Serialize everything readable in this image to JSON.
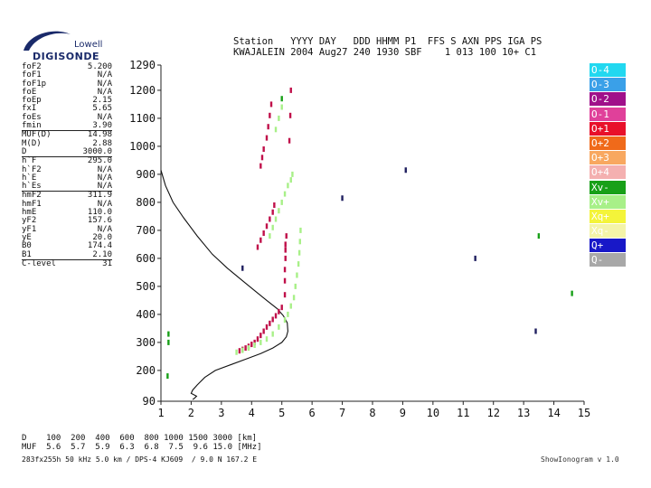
{
  "logo": {
    "line1": "Lowell",
    "line2": "DIGISONDE"
  },
  "header": {
    "line1": "Station   YYYY DAY   DDD HHMM P1  FFS S AXN PPS IGA PS",
    "line2": "KWAJALEIN 2004 Aug27 240 1930 SBF    1 013 100 10+ C1"
  },
  "params": [
    {
      "label": "foF2",
      "value": "5.200"
    },
    {
      "label": "foF1",
      "value": "N/A"
    },
    {
      "label": "foF1p",
      "value": "N/A"
    },
    {
      "label": "foE",
      "value": "N/A"
    },
    {
      "label": "foEp",
      "value": "2.15"
    },
    {
      "label": "fxI",
      "value": "5.65"
    },
    {
      "label": "foEs",
      "value": "N/A"
    },
    {
      "label": "fmin",
      "value": "3.90"
    },
    {
      "label": "MUF(D)",
      "value": "14.98",
      "sep": true
    },
    {
      "label": "M(D)",
      "value": "2.88"
    },
    {
      "label": "D",
      "value": "3000.0"
    },
    {
      "label": "h`F",
      "value": "295.0",
      "sep": true
    },
    {
      "label": "h`F2",
      "value": "N/A"
    },
    {
      "label": "h`E",
      "value": "N/A"
    },
    {
      "label": "h`Es",
      "value": "N/A"
    },
    {
      "label": "hmF2",
      "value": "311.9",
      "sep": true
    },
    {
      "label": "hmF1",
      "value": "N/A"
    },
    {
      "label": "hmE",
      "value": "110.0"
    },
    {
      "label": "yF2",
      "value": "157.6"
    },
    {
      "label": "yF1",
      "value": "N/A"
    },
    {
      "label": "yE",
      "value": "20.0"
    },
    {
      "label": "B0",
      "value": "174.4"
    },
    {
      "label": "B1",
      "value": "2.10"
    },
    {
      "label": "C-level",
      "value": "31",
      "sep": true
    }
  ],
  "legend": [
    {
      "label": "O-4",
      "color": "#22d8f0",
      "text": "#ffffff"
    },
    {
      "label": "O-3",
      "color": "#3aa0e8",
      "text": "#ffffff"
    },
    {
      "label": "O-2",
      "color": "#a0108a",
      "text": "#ffffff"
    },
    {
      "label": "O-1",
      "color": "#e0409a",
      "text": "#ffffff"
    },
    {
      "label": "O+1",
      "color": "#e8102a",
      "text": "#ffffff"
    },
    {
      "label": "O+2",
      "color": "#f06a1a",
      "text": "#ffffff"
    },
    {
      "label": "O+3",
      "color": "#f8a860",
      "text": "#ffffff"
    },
    {
      "label": "O+4",
      "color": "#f4b0b0",
      "text": "#ffffff"
    },
    {
      "label": "Xv-",
      "color": "#18a018",
      "text": "#ffffff"
    },
    {
      "label": "Xv+",
      "color": "#a8f088",
      "text": "#ffffff"
    },
    {
      "label": "Xq+",
      "color": "#f4f43a",
      "text": "#ffffff"
    },
    {
      "label": "Xq-",
      "color": "#f4f4a8",
      "text": "#ffffff"
    },
    {
      "label": "Q+",
      "color": "#1818c8",
      "text": "#ffffff"
    },
    {
      "label": "Q-",
      "color": "#a8a8a8",
      "text": "#ffffff"
    }
  ],
  "chart_data": {
    "type": "scatter",
    "xlim": [
      1,
      15
    ],
    "ylim": [
      90,
      1290
    ],
    "xticks": [
      "1",
      "2",
      "3",
      "4",
      "5",
      "6",
      "7",
      "8",
      "9",
      "10",
      "11",
      "12",
      "13",
      "14",
      "15"
    ],
    "yticks": [
      "90",
      "200",
      "300",
      "400",
      "500",
      "600",
      "700",
      "800",
      "900",
      "1000",
      "1100",
      "1200",
      "1290"
    ],
    "ytick_values": [
      90,
      200,
      300,
      400,
      500,
      600,
      700,
      800,
      900,
      1000,
      1100,
      1200,
      1290
    ],
    "profile": [
      [
        1.0,
        915
      ],
      [
        1.15,
        860
      ],
      [
        1.4,
        800
      ],
      [
        1.75,
        745
      ],
      [
        2.2,
        680
      ],
      [
        2.7,
        615
      ],
      [
        3.2,
        565
      ],
      [
        3.7,
        520
      ],
      [
        4.1,
        485
      ],
      [
        4.5,
        450
      ],
      [
        4.85,
        420
      ],
      [
        5.05,
        395
      ],
      [
        5.18,
        370
      ],
      [
        5.2,
        340
      ],
      [
        5.15,
        320
      ],
      [
        5.0,
        300
      ],
      [
        4.7,
        280
      ],
      [
        4.3,
        260
      ],
      [
        3.8,
        240
      ],
      [
        3.3,
        220
      ],
      [
        2.8,
        200
      ],
      [
        2.45,
        175
      ],
      [
        2.2,
        148
      ],
      [
        2.05,
        130
      ],
      [
        2.0,
        118
      ],
      [
        2.18,
        108
      ],
      [
        2.1,
        100
      ],
      [
        2.05,
        96
      ]
    ],
    "series": [
      {
        "color": "#c0104a",
        "points": [
          [
            3.6,
            270
          ],
          [
            3.7,
            275
          ],
          [
            3.8,
            280
          ],
          [
            3.9,
            286
          ],
          [
            4.0,
            293
          ],
          [
            4.1,
            300
          ],
          [
            4.2,
            312
          ],
          [
            4.3,
            325
          ],
          [
            4.4,
            340
          ],
          [
            4.5,
            355
          ],
          [
            4.6,
            368
          ],
          [
            4.7,
            382
          ],
          [
            4.8,
            395
          ],
          [
            4.9,
            410
          ],
          [
            5.0,
            425
          ],
          [
            5.1,
            470
          ],
          [
            5.1,
            520
          ],
          [
            5.1,
            560
          ],
          [
            5.12,
            600
          ],
          [
            5.12,
            630
          ],
          [
            5.12,
            650
          ],
          [
            5.15,
            680
          ],
          [
            4.2,
            640
          ],
          [
            4.3,
            665
          ],
          [
            4.4,
            690
          ],
          [
            4.5,
            715
          ],
          [
            4.6,
            740
          ],
          [
            4.7,
            765
          ],
          [
            4.75,
            790
          ],
          [
            4.3,
            930
          ],
          [
            4.35,
            960
          ],
          [
            4.4,
            990
          ],
          [
            4.5,
            1030
          ],
          [
            4.55,
            1070
          ],
          [
            4.6,
            1110
          ],
          [
            4.65,
            1150
          ],
          [
            5.25,
            1020
          ],
          [
            5.28,
            1110
          ],
          [
            5.3,
            1200
          ]
        ]
      },
      {
        "color": "#a8f088",
        "points": [
          [
            3.5,
            265
          ],
          [
            3.7,
            272
          ],
          [
            3.9,
            280
          ],
          [
            4.1,
            290
          ],
          [
            4.3,
            300
          ],
          [
            4.5,
            312
          ],
          [
            4.7,
            330
          ],
          [
            4.9,
            355
          ],
          [
            5.1,
            380
          ],
          [
            5.2,
            400
          ],
          [
            5.3,
            430
          ],
          [
            5.4,
            460
          ],
          [
            5.45,
            500
          ],
          [
            5.5,
            540
          ],
          [
            5.55,
            580
          ],
          [
            5.58,
            620
          ],
          [
            5.6,
            660
          ],
          [
            5.62,
            700
          ],
          [
            4.6,
            680
          ],
          [
            4.7,
            710
          ],
          [
            4.8,
            740
          ],
          [
            4.9,
            770
          ],
          [
            5.0,
            800
          ],
          [
            5.1,
            830
          ],
          [
            5.2,
            860
          ],
          [
            5.3,
            880
          ],
          [
            5.35,
            900
          ],
          [
            4.8,
            1060
          ],
          [
            4.9,
            1100
          ],
          [
            5.0,
            1140
          ]
        ]
      },
      {
        "color": "#18a018",
        "points": [
          [
            1.25,
            330
          ],
          [
            1.25,
            300
          ],
          [
            1.22,
            180
          ],
          [
            5.0,
            1170
          ],
          [
            13.5,
            680
          ],
          [
            14.6,
            475
          ]
        ]
      },
      {
        "color": "#202060",
        "points": [
          [
            9.1,
            915
          ],
          [
            11.4,
            600
          ],
          [
            13.4,
            340
          ],
          [
            7.0,
            815
          ],
          [
            3.7,
            565
          ]
        ]
      }
    ]
  },
  "footer": {
    "line1": "D    100  200  400  600  800 1000 1500 3000 [km]",
    "line2": "MUF  5.6  5.7  5.9  6.3  6.8  7.5  9.6 15.0 [MHz]",
    "line3": "283fx255h 50 kHz 5.0 km / DPS-4 KJ609  / 9.0 N 167.2 E",
    "version": "ShowIonogram v 1.0"
  }
}
